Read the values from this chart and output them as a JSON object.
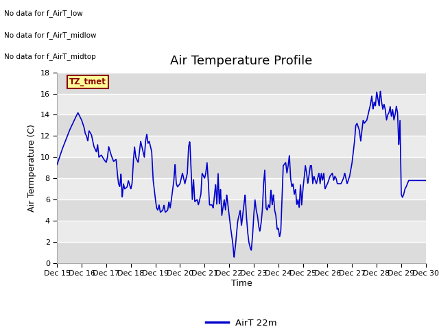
{
  "title": "Air Temperature Profile",
  "xlabel": "Time",
  "ylabel": "Air Termperature (C)",
  "legend_label": "AirT 22m",
  "annotations": [
    "No data for f_AirT_low",
    "No data for f_AirT_midlow",
    "No data for f_AirT_midtop"
  ],
  "legend_box_label": "TZ_tmet",
  "ylim": [
    0,
    18
  ],
  "yticks": [
    0,
    2,
    4,
    6,
    8,
    10,
    12,
    14,
    16,
    18
  ],
  "line_color": "#0000CC",
  "title_fontsize": 13,
  "label_fontsize": 9,
  "tick_fontsize": 8,
  "band_colors": [
    "#DCDCDC",
    "#EBEBEB"
  ],
  "x_tick_labels": [
    "Dec 15",
    "Dec 16",
    "Dec 17",
    "Dec 18",
    "Dec 19",
    "Dec 20",
    "Dec 21",
    "Dec 22",
    "Dec 23",
    "Dec 24",
    "Dec 25",
    "Dec 26",
    "Dec 27",
    "Dec 28",
    "Dec 29",
    "Dec 30"
  ]
}
